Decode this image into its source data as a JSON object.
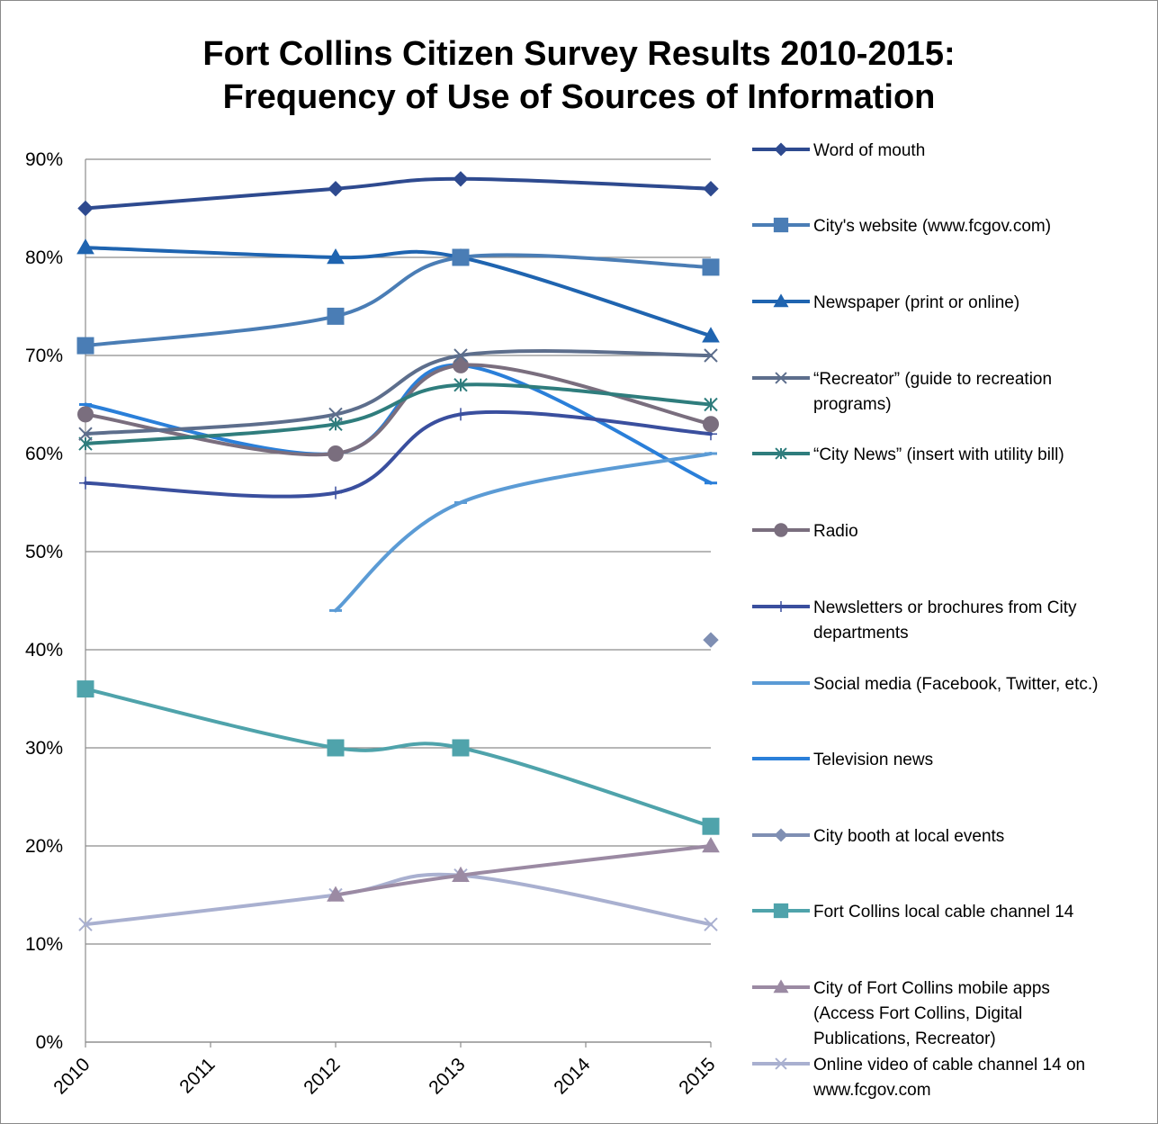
{
  "chart_data": {
    "type": "line",
    "title": [
      "Fort Collins Citizen Survey Results 2010-2015:",
      "Frequency of Use of Sources of Information"
    ],
    "xlabel": "",
    "ylabel": "",
    "x": [
      2010,
      2011,
      2012,
      2013,
      2014,
      2015
    ],
    "x_tick_labels": [
      "2010",
      "2011",
      "2012",
      "2013",
      "2014",
      "2015"
    ],
    "ylim": [
      0,
      90
    ],
    "y_tick_labels": [
      "0%",
      "10%",
      "20%",
      "30%",
      "40%",
      "50%",
      "60%",
      "70%",
      "80%",
      "90%"
    ],
    "grid": "horizontal",
    "legend_position": "right",
    "series": [
      {
        "name": "Word of mouth",
        "color": "#2e4a8f",
        "marker": "diamond",
        "points": [
          [
            2010,
            85
          ],
          [
            2012,
            87
          ],
          [
            2013,
            88
          ],
          [
            2015,
            87
          ]
        ]
      },
      {
        "name": "City's website (www.fcgov.com)",
        "color": "#4a7db5",
        "marker": "square",
        "points": [
          [
            2010,
            71
          ],
          [
            2012,
            74
          ],
          [
            2013,
            80
          ],
          [
            2015,
            79
          ]
        ]
      },
      {
        "name": "Newspaper (print or online)",
        "color": "#1f64b0",
        "marker": "triangle",
        "points": [
          [
            2010,
            81
          ],
          [
            2012,
            80
          ],
          [
            2013,
            80
          ],
          [
            2015,
            72
          ]
        ]
      },
      {
        "name": "“Recreator” (guide to recreation programs)",
        "color": "#5d6e8c",
        "marker": "x",
        "points": [
          [
            2010,
            62
          ],
          [
            2012,
            64
          ],
          [
            2013,
            70
          ],
          [
            2015,
            70
          ]
        ]
      },
      {
        "name": "“City News” (insert with utility bill)",
        "color": "#2f7d7d",
        "marker": "star",
        "points": [
          [
            2010,
            61
          ],
          [
            2012,
            63
          ],
          [
            2013,
            67
          ],
          [
            2015,
            65
          ]
        ]
      },
      {
        "name": "Radio",
        "color": "#7a6e7e",
        "marker": "circle",
        "points": [
          [
            2010,
            64
          ],
          [
            2012,
            60
          ],
          [
            2013,
            69
          ],
          [
            2015,
            63
          ]
        ]
      },
      {
        "name": "Newsletters or brochures from City departments",
        "color": "#3a4f9e",
        "marker": "plus",
        "points": [
          [
            2010,
            57
          ],
          [
            2012,
            56
          ],
          [
            2013,
            64
          ],
          [
            2015,
            62
          ]
        ]
      },
      {
        "name": "Social media (Facebook, Twitter, etc.)",
        "color": "#5b9bd5",
        "marker": "dash",
        "points": [
          [
            2012,
            44
          ],
          [
            2013,
            55
          ],
          [
            2015,
            60
          ]
        ]
      },
      {
        "name": "Television news",
        "color": "#2a7fd9",
        "marker": "dash",
        "points": [
          [
            2010,
            65
          ],
          [
            2012,
            60
          ],
          [
            2013,
            69
          ],
          [
            2015,
            57
          ]
        ]
      },
      {
        "name": "City booth at local events",
        "color": "#7f8fb3",
        "marker": "diamond",
        "points": [
          [
            2015,
            41
          ]
        ]
      },
      {
        "name": "Fort Collins local cable channel 14",
        "color": "#4fa3ab",
        "marker": "square",
        "points": [
          [
            2010,
            36
          ],
          [
            2012,
            30
          ],
          [
            2013,
            30
          ],
          [
            2015,
            22
          ]
        ]
      },
      {
        "name": "City of Fort Collins mobile apps (Access Fort Collins, Digital Publications, Recreator)",
        "color": "#9b8aa3",
        "marker": "triangle",
        "points": [
          [
            2012,
            15
          ],
          [
            2013,
            17
          ],
          [
            2015,
            20
          ]
        ]
      },
      {
        "name": "Online video of cable channel 14 on www.fcgov.com",
        "color": "#a9b0d0",
        "marker": "x",
        "points": [
          [
            2010,
            12
          ],
          [
            2012,
            15
          ],
          [
            2013,
            17
          ],
          [
            2015,
            12
          ]
        ]
      }
    ],
    "legend_lines": [
      [
        "Word of mouth"
      ],
      [
        "City's website (www.fcgov.com)"
      ],
      [
        "Newspaper (print or online)"
      ],
      [
        "“Recreator” (guide to recreation",
        "programs)"
      ],
      [
        "“City News” (insert with utility bill)"
      ],
      [
        "Radio"
      ],
      [
        "Newsletters or brochures from City",
        "departments"
      ],
      [
        "Social media (Facebook, Twitter, etc.)"
      ],
      [
        "Television news"
      ],
      [
        "City booth at local events"
      ],
      [
        "Fort Collins local cable channel 14"
      ],
      [
        "City of Fort Collins mobile apps",
        "(Access Fort Collins, Digital",
        "Publications, Recreator)"
      ],
      [
        "Online video of cable channel 14 on",
        "www.fcgov.com"
      ]
    ]
  }
}
